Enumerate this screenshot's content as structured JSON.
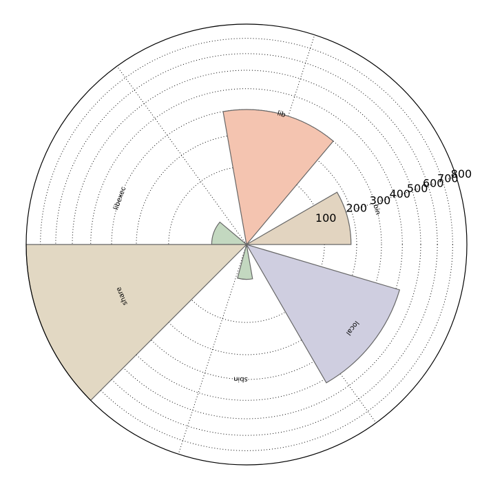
{
  "chart_data": {
    "type": "polar-bar",
    "title": "",
    "r_ticks": [
      100,
      200,
      300,
      400,
      500,
      600,
      700,
      800
    ],
    "r_tick_labels": [
      "100",
      "200",
      "300",
      "400",
      "500",
      "600",
      "700",
      "800"
    ],
    "rmax": 800,
    "radial_scale": "sqrt",
    "grid": true,
    "sectors": [
      {
        "name": "bin",
        "label": "bin",
        "start_deg": 0,
        "end_deg": 30,
        "value": 180,
        "color": "#e2d4c0"
      },
      {
        "name": "lib",
        "label": "lib",
        "start_deg": 50,
        "end_deg": 100,
        "value": 300,
        "color": "#f4c4b0"
      },
      {
        "name": "libexec",
        "label": "libexec",
        "start_deg": 140,
        "end_deg": 180,
        "value": 20,
        "color": "#c3d8c0"
      },
      {
        "name": "share",
        "label": "share",
        "start_deg": 180,
        "end_deg": 225,
        "value": 800,
        "color": "#e2d8c3"
      },
      {
        "name": "sbin",
        "label": "sbin",
        "start_deg": 255,
        "end_deg": 280,
        "value": 20,
        "color": "#c3d8c0"
      },
      {
        "name": "local",
        "label": "local",
        "start_deg": 300,
        "end_deg": 343.5,
        "value": 420,
        "color": "#cfcee0"
      }
    ],
    "spoke_angles_deg": [
      18,
      72,
      126,
      200,
      252,
      306
    ],
    "label_radius_value": 300
  }
}
